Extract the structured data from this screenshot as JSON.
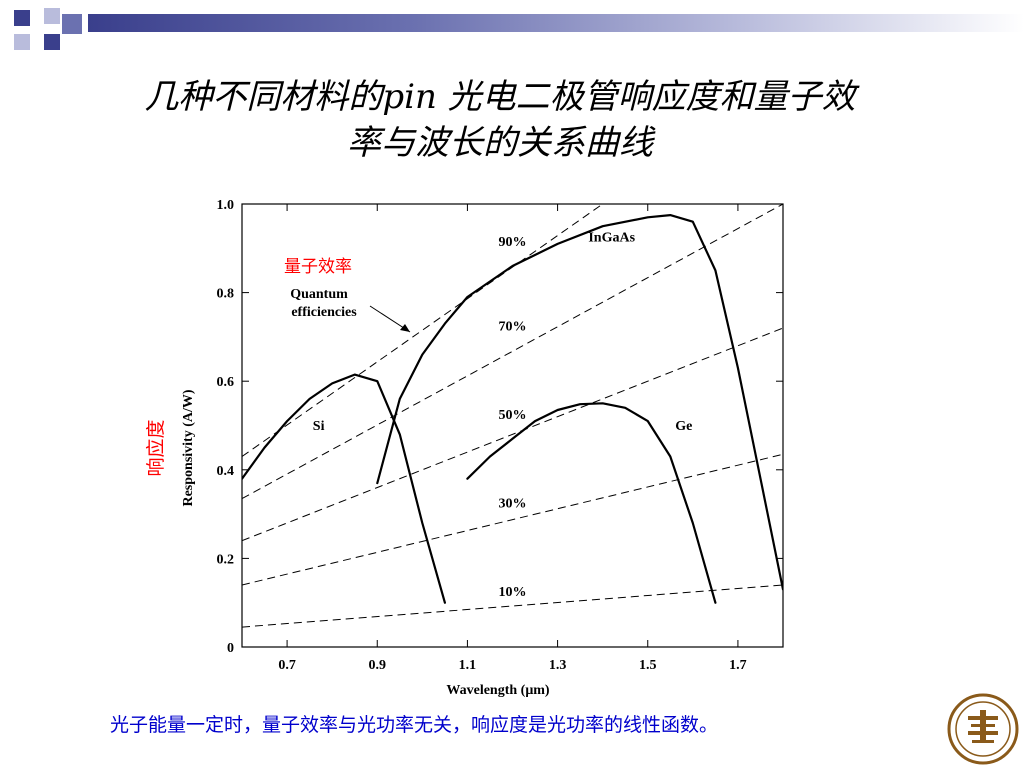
{
  "title_line1": "几种不同材料的pin 光电二极管响应度和量子效",
  "title_line2": "率与波长的关系曲线",
  "caption": "光子能量一定时，量子效率与光功率无关，响应度是光功率的线性函数。",
  "colors": {
    "accent_dark": "#3a3f8c",
    "accent_mid": "#6b71b0",
    "accent_light": "#b9bcdc",
    "annotation_red": "#ff0000",
    "caption_blue": "#0000cc",
    "logo": "#8a5a1a"
  },
  "logo_icon": "university-seal-icon",
  "chart_data": {
    "type": "line",
    "xlabel": "Wavelength (μm)",
    "ylabel": "Responsivity (A/W)",
    "ylabel_cn": "响应度",
    "xlim": [
      0.6,
      1.8
    ],
    "ylim": [
      0,
      1.0
    ],
    "xticks": [
      0.7,
      0.9,
      1.1,
      1.3,
      1.5,
      1.7
    ],
    "xtick_labels": [
      "0.7",
      "0.9",
      "1.1",
      "1.3",
      "1.5",
      "1.7"
    ],
    "yticks": [
      0,
      0.2,
      0.4,
      0.6,
      0.8,
      1.0
    ],
    "ytick_labels": [
      "0",
      "0.2",
      "0.4",
      "0.6",
      "0.8",
      "1.0"
    ],
    "grid": false,
    "series": [
      {
        "name": "Si",
        "x": [
          0.6,
          0.65,
          0.7,
          0.75,
          0.8,
          0.85,
          0.9,
          0.95,
          1.0,
          1.05
        ],
        "y": [
          0.38,
          0.45,
          0.51,
          0.56,
          0.595,
          0.615,
          0.6,
          0.48,
          0.28,
          0.1
        ]
      },
      {
        "name": "InGaAs",
        "x": [
          0.9,
          0.95,
          1.0,
          1.05,
          1.1,
          1.2,
          1.3,
          1.4,
          1.5,
          1.55,
          1.6,
          1.65,
          1.7,
          1.75,
          1.8
        ],
        "y": [
          0.37,
          0.56,
          0.66,
          0.73,
          0.79,
          0.86,
          0.91,
          0.95,
          0.97,
          0.975,
          0.96,
          0.85,
          0.63,
          0.38,
          0.13
        ]
      },
      {
        "name": "Ge",
        "x": [
          1.1,
          1.15,
          1.2,
          1.25,
          1.3,
          1.35,
          1.4,
          1.45,
          1.5,
          1.55,
          1.6,
          1.65
        ],
        "y": [
          0.38,
          0.43,
          0.47,
          0.51,
          0.535,
          0.548,
          0.55,
          0.54,
          0.51,
          0.43,
          0.28,
          0.1
        ]
      }
    ],
    "efficiency_lines": [
      {
        "label": "10%",
        "x": [
          0.6,
          1.8
        ],
        "y": [
          0.045,
          0.14
        ]
      },
      {
        "label": "30%",
        "x": [
          0.6,
          1.8
        ],
        "y": [
          0.14,
          0.435
        ]
      },
      {
        "label": "50%",
        "x": [
          0.6,
          1.8
        ],
        "y": [
          0.24,
          0.72
        ]
      },
      {
        "label": "70%",
        "x": [
          0.6,
          1.8
        ],
        "y": [
          0.335,
          1.0
        ]
      },
      {
        "label": "90%",
        "x": [
          0.6,
          1.4
        ],
        "y": [
          0.43,
          1.0
        ]
      }
    ],
    "efficiency_label_positions": [
      {
        "label": "10%",
        "x": 1.2,
        "y": 0.115
      },
      {
        "label": "30%",
        "x": 1.2,
        "y": 0.315
      },
      {
        "label": "50%",
        "x": 1.2,
        "y": 0.515
      },
      {
        "label": "70%",
        "x": 1.2,
        "y": 0.715
      },
      {
        "label": "90%",
        "x": 1.2,
        "y": 0.905
      }
    ],
    "series_label_positions": [
      {
        "name": "Si",
        "x": 0.77,
        "y": 0.49
      },
      {
        "name": "InGaAs",
        "x": 1.42,
        "y": 0.915
      },
      {
        "name": "Ge",
        "x": 1.58,
        "y": 0.49
      }
    ],
    "annotation": {
      "cn": "量子效率",
      "en_line1": "Quantum",
      "en_line2": "efficiencies"
    }
  }
}
